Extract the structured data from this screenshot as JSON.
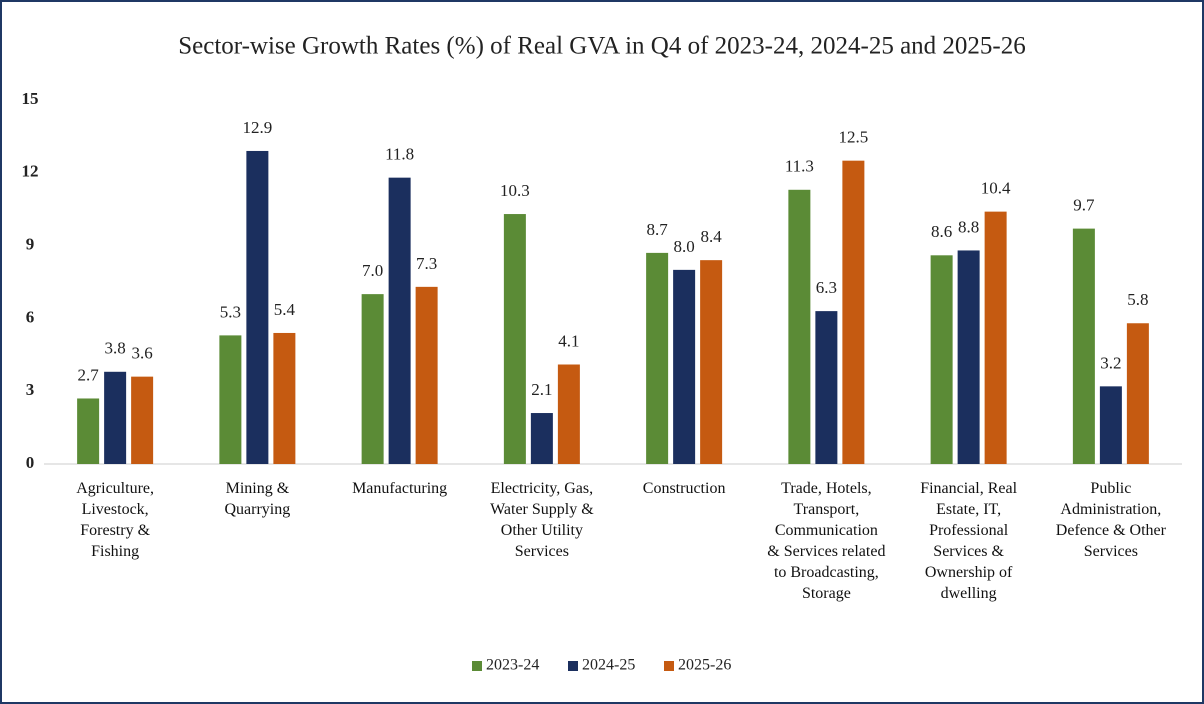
{
  "chart_data": {
    "type": "bar",
    "title": "Sector-wise Growth Rates (%) of Real GVA in Q4 of  2023-24, 2024-25 and 2025-26",
    "categories": [
      "Agriculture,\nLivestock,\nForestry &\nFishing",
      "Mining &\nQuarrying",
      "Manufacturing",
      "Electricity, Gas,\nWater Supply &\nOther Utility\nServices",
      "Construction",
      "Trade, Hotels,\nTransport,\nCommunication\n& Services related\nto Broadcasting,\nStorage",
      "Financial, Real\nEstate, IT,\nProfessional\nServices &\nOwnership of\ndwelling",
      "Public\nAdministration,\nDefence & Other\nServices"
    ],
    "series": [
      {
        "name": "2023-24",
        "color": "#5b8b36",
        "values": [
          2.7,
          5.3,
          7.0,
          10.3,
          8.7,
          11.3,
          8.6,
          9.7
        ],
        "value_labels": [
          "2.7",
          "5.3",
          "7.0",
          "10.3",
          "8.7",
          "11.3",
          "8.6",
          "9.7"
        ]
      },
      {
        "name": "2024-25",
        "color": "#1b2f5e",
        "values": [
          3.8,
          12.9,
          11.8,
          2.1,
          8.0,
          6.3,
          8.8,
          3.2
        ],
        "value_labels": [
          "3.8",
          "12.9",
          "11.8",
          "2.1",
          "8.0",
          "6.3",
          "8.8",
          "3.2"
        ]
      },
      {
        "name": "2025-26",
        "color": "#c55a11",
        "values": [
          3.6,
          5.4,
          7.3,
          4.1,
          8.4,
          12.5,
          10.4,
          5.8
        ],
        "value_labels": [
          "3.6",
          "5.4",
          "7.3",
          "4.1",
          "8.4",
          "12.5",
          "10.4",
          "5.8"
        ]
      }
    ],
    "ylim": [
      0,
      15
    ],
    "yticks": [
      0,
      3,
      6,
      9,
      12,
      15
    ],
    "grid": false,
    "legend": "bottom"
  }
}
